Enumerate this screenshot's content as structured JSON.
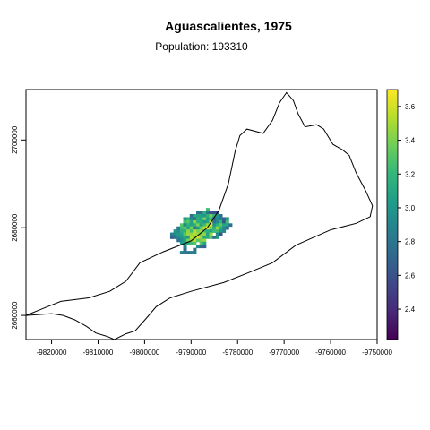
{
  "title": "Aguascalientes, 1975",
  "subtitle": "Population: 193310",
  "chart_data": {
    "type": "heatmap",
    "x_ticks": [
      "-9820000",
      "-9810000",
      "-9800000",
      "-9790000",
      "-9780000",
      "-9770000",
      "-9760000",
      "-9750000"
    ],
    "y_ticks": [
      "2660000",
      "2680000",
      "2700000"
    ],
    "xlim": [
      -9825500,
      -9750000
    ],
    "ylim": [
      2654500,
      2711500
    ],
    "colorbar": {
      "ticks": [
        "2.4",
        "2.6",
        "2.8",
        "3.0",
        "3.2",
        "3.4",
        "3.6"
      ],
      "range": [
        2.22,
        3.7
      ],
      "palette": "viridis"
    },
    "boundary": [
      [
        -9825500,
        2660000
      ],
      [
        -9822000,
        2661500
      ],
      [
        -9818000,
        2663200
      ],
      [
        -9812000,
        2664000
      ],
      [
        -9807500,
        2665500
      ],
      [
        -9804000,
        2667800
      ],
      [
        -9801000,
        2672000
      ],
      [
        -9796000,
        2674500
      ],
      [
        -9790000,
        2677000
      ],
      [
        -9786500,
        2680000
      ],
      [
        -9784000,
        2684000
      ],
      [
        -9782000,
        2690000
      ],
      [
        -9780500,
        2697500
      ],
      [
        -9779500,
        2701000
      ],
      [
        -9778000,
        2702500
      ],
      [
        -9774500,
        2701500
      ],
      [
        -9772500,
        2704500
      ],
      [
        -9771000,
        2708500
      ],
      [
        -9769500,
        2710800
      ],
      [
        -9768000,
        2709000
      ],
      [
        -9767000,
        2706000
      ],
      [
        -9765500,
        2703000
      ],
      [
        -9763000,
        2703500
      ],
      [
        -9761500,
        2702500
      ],
      [
        -9759500,
        2699000
      ],
      [
        -9757500,
        2697800
      ],
      [
        -9756000,
        2696500
      ],
      [
        -9754500,
        2692500
      ],
      [
        -9752500,
        2688500
      ],
      [
        -9751000,
        2685000
      ],
      [
        -9751500,
        2682500
      ],
      [
        -9754500,
        2681000
      ],
      [
        -9760000,
        2679500
      ],
      [
        -9767500,
        2676000
      ],
      [
        -9772500,
        2672000
      ],
      [
        -9777500,
        2669800
      ],
      [
        -9783000,
        2667500
      ],
      [
        -9790000,
        2665500
      ],
      [
        -9794500,
        2664000
      ],
      [
        -9797500,
        2662000
      ],
      [
        -9799500,
        2659500
      ],
      [
        -9802000,
        2656500
      ],
      [
        -9804000,
        2655800
      ],
      [
        -9806500,
        2654500
      ],
      [
        -9808000,
        2655200
      ],
      [
        -9810500,
        2656000
      ],
      [
        -9812500,
        2657500
      ],
      [
        -9815000,
        2659000
      ],
      [
        -9817500,
        2660000
      ],
      [
        -9820000,
        2660400
      ],
      [
        -9825500,
        2660000
      ]
    ],
    "cells": {
      "x0": -9794500,
      "y0": 2684500,
      "dx": 700,
      "dy": 700,
      "rows": [
        "...........N..............",
        "........HHMHFFF...........",
        "......HMLLKMPMKH..........",
        "....KMJHMLPLNGJIGK........",
        "....NOLQMMKLRHJMFN........",
        "...OJMLMPLNQSKMOLLH.......",
        "..HNOLPHKORSPMQMJH........",
        ".KJMMQNRPQNMLNNKJ.........",
        "IJKLOQQRQPQLQ.JF..........",
        "GHJKLKRPSQLMOHK...........",
        "..HJLPQROPQ...............",
        "...KLMNO.OL...............",
        "....J...JHG...............",
        "....H..H..................",
        "...IIHII..................",
        ".........................."
      ]
    }
  }
}
